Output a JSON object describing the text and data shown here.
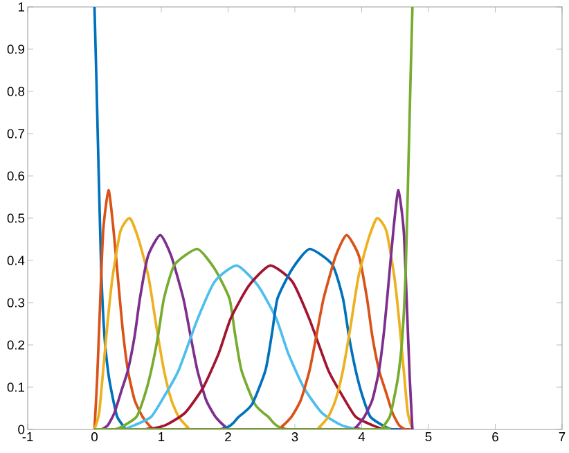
{
  "chart_data": {
    "type": "line",
    "xlim": [
      -1,
      7
    ],
    "ylim": [
      0,
      1
    ],
    "xticks": [
      -1,
      0,
      1,
      2,
      3,
      4,
      5,
      6,
      7
    ],
    "yticks": [
      0,
      0.1,
      0.2,
      0.3,
      0.4,
      0.5,
      0.6,
      0.7,
      0.8,
      0.9,
      1
    ],
    "series": [
      {
        "color": "#0072bd",
        "x": [
          0,
          0.03,
          0.05,
          0.1,
          0.15,
          0.21,
          0.28,
          0.34,
          0.45,
          0.55,
          4.76
        ],
        "values": [
          1,
          0.82,
          0.69,
          0.38,
          0.22,
          0.13,
          0.07,
          0.03,
          0.005,
          0,
          0
        ]
      },
      {
        "color": "#d95319",
        "x": [
          0,
          0.04,
          0.08,
          0.13,
          0.21,
          0.28,
          0.35,
          0.42,
          0.5,
          0.6,
          0.72,
          0.85,
          1.0,
          4.76
        ],
        "values": [
          0,
          0.12,
          0.28,
          0.47,
          0.566,
          0.48,
          0.36,
          0.24,
          0.14,
          0.07,
          0.03,
          0.005,
          0,
          0
        ]
      },
      {
        "color": "#edb120",
        "x": [
          0,
          0.07,
          0.13,
          0.2,
          0.27,
          0.39,
          0.53,
          0.66,
          0.81,
          0.93,
          1.04,
          1.15,
          1.26,
          1.4,
          1.55,
          4.76
        ],
        "values": [
          0,
          0.04,
          0.14,
          0.26,
          0.36,
          0.47,
          0.5,
          0.45,
          0.36,
          0.24,
          0.14,
          0.07,
          0.03,
          0.005,
          0,
          0
        ]
      },
      {
        "color": "#7e2f8e",
        "x": [
          0,
          0.1,
          0.2,
          0.3,
          0.4,
          0.5,
          0.6,
          0.68,
          0.8,
          0.985,
          1.15,
          1.33,
          1.44,
          1.54,
          1.67,
          1.81,
          1.95,
          2.1,
          4.76
        ],
        "values": [
          0,
          0,
          0.01,
          0.04,
          0.09,
          0.14,
          0.22,
          0.31,
          0.41,
          0.46,
          0.41,
          0.31,
          0.22,
          0.14,
          0.07,
          0.03,
          0.008,
          0,
          0
        ]
      },
      {
        "color": "#77ac30",
        "x": [
          0,
          0.3,
          0.45,
          0.63,
          0.75,
          0.85,
          0.95,
          1.04,
          1.2,
          1.54,
          1.8,
          2.02,
          2.1,
          2.2,
          2.4,
          2.6,
          2.9,
          4.76
        ],
        "values": [
          0,
          0,
          0.01,
          0.03,
          0.08,
          0.14,
          0.22,
          0.31,
          0.39,
          0.427,
          0.38,
          0.31,
          0.23,
          0.14,
          0.06,
          0.03,
          0,
          0
        ]
      },
      {
        "color": "#4dbeee",
        "x": [
          0,
          0.4,
          0.6,
          0.85,
          1.05,
          1.26,
          1.54,
          1.8,
          2.13,
          2.45,
          2.72,
          2.9,
          3.13,
          3.4,
          3.7,
          4.0,
          4.76
        ],
        "values": [
          0,
          0,
          0.01,
          0.03,
          0.08,
          0.14,
          0.26,
          0.35,
          0.388,
          0.34,
          0.263,
          0.18,
          0.1,
          0.04,
          0.01,
          0,
          0
        ]
      },
      {
        "color": "#a2142f",
        "x": [
          0,
          0.76,
          1.06,
          1.36,
          1.63,
          1.86,
          2.04,
          2.31,
          2.63,
          2.96,
          3.22,
          3.5,
          3.71,
          3.91,
          4.16,
          4.36,
          4.76
        ],
        "values": [
          0,
          0,
          0.01,
          0.04,
          0.1,
          0.18,
          0.263,
          0.34,
          0.388,
          0.35,
          0.26,
          0.14,
          0.08,
          0.03,
          0.01,
          0,
          0
        ]
      },
      {
        "color": "#0072bd",
        "x": [
          0,
          1.86,
          2.16,
          2.36,
          2.56,
          2.66,
          2.74,
          2.96,
          3.22,
          3.56,
          3.72,
          3.81,
          3.91,
          4.01,
          4.13,
          4.31,
          4.46,
          4.76
        ],
        "values": [
          0,
          0,
          0.03,
          0.06,
          0.14,
          0.23,
          0.31,
          0.38,
          0.427,
          0.39,
          0.31,
          0.22,
          0.14,
          0.08,
          0.03,
          0.01,
          0,
          0
        ]
      },
      {
        "color": "#d95319",
        "x": [
          0,
          2.66,
          2.81,
          2.95,
          3.09,
          3.22,
          3.32,
          3.43,
          3.61,
          3.775,
          3.96,
          4.08,
          4.16,
          4.26,
          4.36,
          4.46,
          4.56,
          4.66,
          4.76
        ],
        "values": [
          0,
          0,
          0.008,
          0.03,
          0.07,
          0.14,
          0.22,
          0.31,
          0.41,
          0.46,
          0.41,
          0.31,
          0.22,
          0.14,
          0.09,
          0.04,
          0.01,
          0,
          0
        ]
      },
      {
        "color": "#edb120",
        "x": [
          0,
          3.21,
          3.36,
          3.5,
          3.61,
          3.72,
          3.83,
          3.95,
          4.1,
          4.23,
          4.37,
          4.49,
          4.56,
          4.63,
          4.69,
          4.76
        ],
        "values": [
          0,
          0,
          0.005,
          0.03,
          0.07,
          0.14,
          0.24,
          0.36,
          0.45,
          0.5,
          0.47,
          0.36,
          0.26,
          0.14,
          0.04,
          0
        ]
      },
      {
        "color": "#7e2f8e",
        "x": [
          0,
          3.76,
          3.91,
          4.04,
          4.16,
          4.26,
          4.34,
          4.41,
          4.48,
          4.55,
          4.63,
          4.68,
          4.72,
          4.76
        ],
        "values": [
          0,
          0,
          0.005,
          0.03,
          0.07,
          0.14,
          0.24,
          0.36,
          0.48,
          0.566,
          0.47,
          0.28,
          0.12,
          0
        ]
      },
      {
        "color": "#77ac30",
        "x": [
          0,
          4.21,
          4.31,
          4.42,
          4.48,
          4.55,
          4.61,
          4.66,
          4.71,
          4.73,
          4.76
        ],
        "values": [
          0,
          0,
          0.005,
          0.03,
          0.07,
          0.13,
          0.22,
          0.38,
          0.69,
          0.82,
          1
        ]
      }
    ]
  }
}
